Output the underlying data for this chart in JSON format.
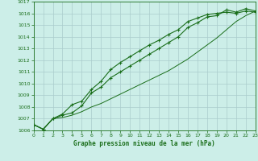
{
  "title": "Graphe pression niveau de la mer (hPa)",
  "bg_color": "#cceee8",
  "grid_color": "#aacccc",
  "line_color": "#1a6e1a",
  "xlim": [
    0,
    23
  ],
  "ylim": [
    1006,
    1017
  ],
  "xticks": [
    0,
    1,
    2,
    3,
    4,
    5,
    6,
    7,
    8,
    9,
    10,
    11,
    12,
    13,
    14,
    15,
    16,
    17,
    18,
    19,
    20,
    21,
    22,
    23
  ],
  "yticks": [
    1006,
    1007,
    1008,
    1009,
    1010,
    1011,
    1012,
    1013,
    1014,
    1015,
    1016,
    1017
  ],
  "series1": [
    1006.5,
    1006.1,
    1007.0,
    1007.3,
    1007.5,
    1008.1,
    1009.2,
    1009.7,
    1010.5,
    1011.0,
    1011.5,
    1012.0,
    1012.5,
    1013.0,
    1013.5,
    1014.0,
    1014.8,
    1015.2,
    1015.7,
    1015.8,
    1016.3,
    1016.1,
    1016.4,
    1016.2
  ],
  "series2": [
    1006.5,
    1006.1,
    1007.0,
    1007.4,
    1008.2,
    1008.5,
    1009.5,
    1010.2,
    1011.2,
    1011.8,
    1012.3,
    1012.8,
    1013.3,
    1013.7,
    1014.2,
    1014.6,
    1015.3,
    1015.6,
    1015.9,
    1016.0,
    1016.1,
    1016.0,
    1016.2,
    1016.1
  ],
  "series3": [
    1006.5,
    1006.1,
    1007.0,
    1007.1,
    1007.3,
    1007.6,
    1008.0,
    1008.3,
    1008.7,
    1009.1,
    1009.5,
    1009.9,
    1010.3,
    1010.7,
    1011.1,
    1011.6,
    1012.1,
    1012.7,
    1013.3,
    1013.9,
    1014.6,
    1015.3,
    1015.8,
    1016.2
  ]
}
